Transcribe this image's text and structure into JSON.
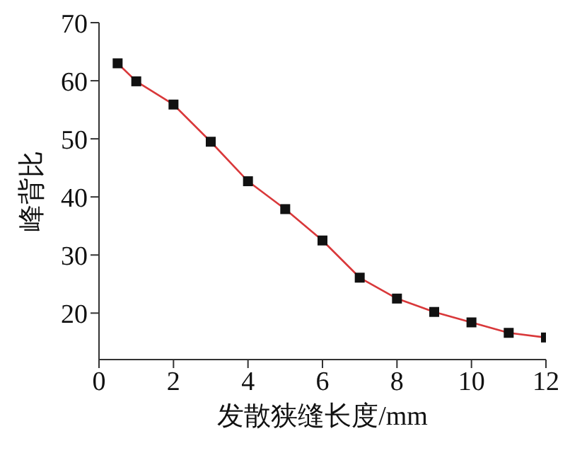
{
  "chart_data": {
    "type": "line",
    "xlabel": "发散狭缝长度/mm",
    "ylabel": "峰背比",
    "x": [
      0.5,
      1,
      2,
      3,
      4,
      5,
      6,
      7,
      8,
      9,
      10,
      11,
      12
    ],
    "series": [
      {
        "color": "#d9383a",
        "values": [
          63,
          59.9,
          55.9,
          49.5,
          42.7,
          37.9,
          32.5,
          26.1,
          22.5,
          20.2,
          18.4,
          16.6,
          15.8
        ]
      }
    ],
    "xlim": [
      0,
      12
    ],
    "xticks": [
      0,
      2,
      4,
      6,
      8,
      10,
      12
    ],
    "ylim": [
      12,
      70
    ],
    "yticks": [
      20,
      30,
      40,
      50,
      60,
      70
    ],
    "marker": "square",
    "line_style": "solid",
    "grid": false,
    "legend": false
  }
}
